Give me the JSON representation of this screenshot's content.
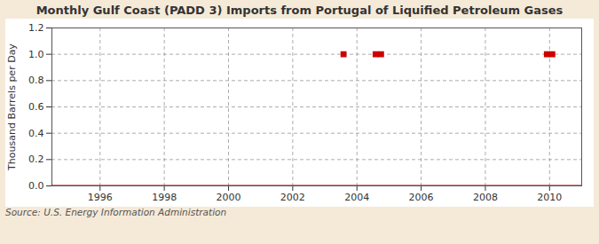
{
  "chart_data": {
    "type": "scatter",
    "title": "Monthly Gulf Coast (PADD 3) Imports from Portugal of Liquified Petroleum Gases",
    "ylabel": "Thousand Barrels per Day",
    "source": "Source: U.S. Energy Information Administration",
    "series": [
      {
        "type": "line",
        "color": "#aa0000",
        "x": [
          1994.5,
          2011.0
        ],
        "values": [
          0,
          0
        ]
      },
      {
        "type": "scatter",
        "marker": "square",
        "color": "#cc0000",
        "x": [
          2003.583,
          2004.583,
          2004.75,
          2009.917,
          2010.083
        ],
        "values": [
          1.0,
          1.0,
          1.0,
          1.0,
          1.0
        ]
      }
    ],
    "xlim": [
      1994.5,
      2011.0
    ],
    "xticks": [
      1996,
      1998,
      2000,
      2002,
      2004,
      2006,
      2008,
      2010
    ],
    "ylim": [
      0,
      1.2
    ],
    "yticks": [
      {
        "value": 0.0,
        "label": "0.0"
      },
      0.2,
      0.4,
      0.6,
      0.8,
      {
        "value": 1.0,
        "label": "1.0"
      },
      1.2
    ],
    "grid": true
  }
}
